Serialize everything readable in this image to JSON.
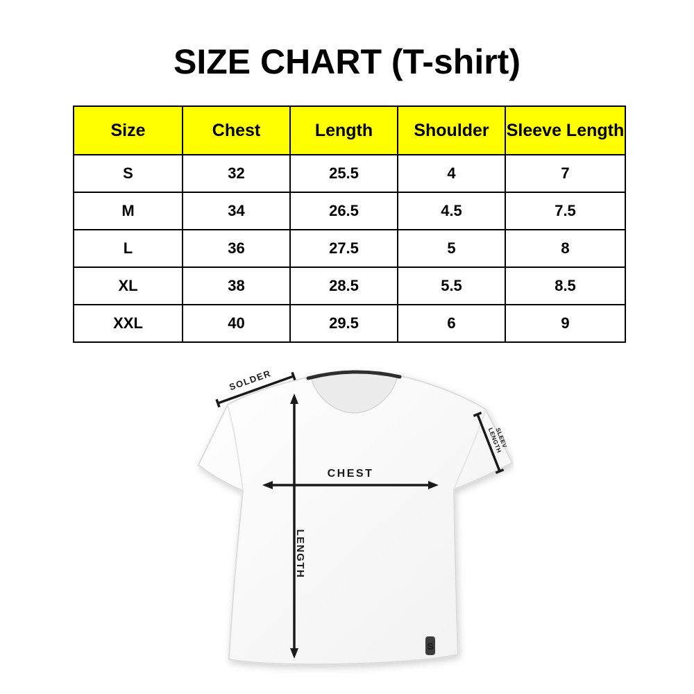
{
  "title": "SIZE CHART (T-shirt)",
  "size_table": {
    "header_bg": "#ffff00",
    "border_color": "#000000",
    "columns": [
      "Size",
      "Chest",
      "Length",
      "Shoulder",
      "Sleeve Length"
    ],
    "rows": [
      [
        "S",
        "32",
        "25.5",
        "4",
        "7"
      ],
      [
        "M",
        "34",
        "26.5",
        "4.5",
        "7.5"
      ],
      [
        "L",
        "36",
        "27.5",
        "5",
        "8"
      ],
      [
        "XL",
        "38",
        "28.5",
        "5.5",
        "8.5"
      ],
      [
        "XXL",
        "40",
        "29.5",
        "6",
        "9"
      ]
    ]
  },
  "diagram": {
    "shoulder_label": "SOLDER",
    "sleeve_label_line1": "SLEEV",
    "sleeve_label_line2": "LENGTH",
    "chest_label": "CHEST",
    "length_label": "LENGTH",
    "logo_letter": "S",
    "arrow_color": "#1a1a1a",
    "shirt_fill": "#fbfbfb",
    "collar_color": "#2e2e2e"
  }
}
